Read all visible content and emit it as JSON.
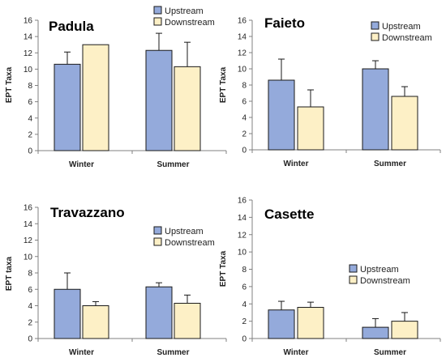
{
  "colors": {
    "upstream": "#94aadb",
    "downstream": "#fdf0c6",
    "bar_stroke": "#1a1a1a",
    "axis": "#808080"
  },
  "chart_data": [
    {
      "type": "bar",
      "title": "Padula",
      "ylabel": "EPT Taxa",
      "xlabel": "",
      "categories": [
        "Winter",
        "Summer"
      ],
      "ylim": [
        0,
        16
      ],
      "yticks": [
        0,
        2,
        4,
        6,
        8,
        10,
        12,
        14,
        16
      ],
      "legend_position": "top-center",
      "series": [
        {
          "name": "Upstream",
          "values": [
            10.6,
            12.3
          ],
          "errors": [
            1.5,
            2.1
          ]
        },
        {
          "name": "Downstream",
          "values": [
            13.0,
            10.3
          ],
          "errors": [
            0.0,
            3.0
          ]
        }
      ]
    },
    {
      "type": "bar",
      "title": "Faieto",
      "ylabel": "EPT Taxa",
      "xlabel": "",
      "categories": [
        "Winter",
        "Summer"
      ],
      "ylim": [
        0,
        16
      ],
      "yticks": [
        0,
        2,
        4,
        6,
        8,
        10,
        12,
        14,
        16
      ],
      "legend_position": "top-right",
      "series": [
        {
          "name": "Upstream",
          "values": [
            8.6,
            10.0
          ],
          "errors": [
            2.6,
            1.0
          ]
        },
        {
          "name": "Downstream",
          "values": [
            5.3,
            6.6
          ],
          "errors": [
            2.1,
            1.2
          ]
        }
      ]
    },
    {
      "type": "bar",
      "title": "Travazzano",
      "ylabel": "EPT taxa",
      "xlabel": "",
      "categories": [
        "Winter",
        "Summer"
      ],
      "ylim": [
        0,
        16
      ],
      "yticks": [
        0,
        2,
        4,
        6,
        8,
        10,
        12,
        14,
        16
      ],
      "legend_position": "middle-center",
      "series": [
        {
          "name": "Upstream",
          "values": [
            6.0,
            6.3
          ],
          "errors": [
            2.0,
            0.5
          ]
        },
        {
          "name": "Downstream",
          "values": [
            4.0,
            4.3
          ],
          "errors": [
            0.5,
            1.0
          ]
        }
      ]
    },
    {
      "type": "bar",
      "title": "Casette",
      "ylabel": "EPT Taxa",
      "xlabel": "",
      "categories": [
        "Winter",
        "Summer"
      ],
      "ylim": [
        0,
        16
      ],
      "yticks": [
        0,
        2,
        4,
        6,
        8,
        10,
        12,
        14,
        16
      ],
      "legend_position": "middle-right",
      "series": [
        {
          "name": "Upstream",
          "values": [
            3.3,
            1.3
          ],
          "errors": [
            1.0,
            1.0
          ]
        },
        {
          "name": "Downstream",
          "values": [
            3.6,
            2.0
          ],
          "errors": [
            0.6,
            1.0
          ]
        }
      ]
    }
  ]
}
